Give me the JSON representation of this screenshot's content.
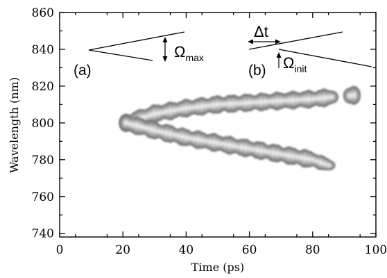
{
  "chart_data": {
    "type": "heatmap",
    "title": "",
    "xlabel": "Time (ps)",
    "ylabel": "Wavelength (nm)",
    "xlim": [
      0,
      100
    ],
    "ylim": [
      738,
      860
    ],
    "x_ticks": [
      0,
      20,
      40,
      60,
      80,
      100
    ],
    "y_ticks": [
      740,
      760,
      780,
      800,
      820,
      840,
      860
    ],
    "x_tick_labels": [
      "0",
      "20",
      "40",
      "60",
      "80",
      "100"
    ],
    "y_tick_labels": [
      "740",
      "760",
      "780",
      "800",
      "820",
      "840",
      "860"
    ],
    "grid": false,
    "colormap": "grayscale contours",
    "branches": [
      {
        "name": "",
        "points": [
          {
            "t": 21,
            "wl": 800
          },
          {
            "t": 30,
            "wl": 805
          },
          {
            "t": 40,
            "wl": 808
          },
          {
            "t": 50,
            "wl": 810
          },
          {
            "t": 60,
            "wl": 811
          },
          {
            "t": 70,
            "wl": 812
          },
          {
            "t": 80,
            "wl": 813
          },
          {
            "t": 86,
            "wl": 814
          },
          {
            "t": 93,
            "wl": 815
          }
        ]
      },
      {
        "name": "",
        "points": [
          {
            "t": 21,
            "wl": 800
          },
          {
            "t": 30,
            "wl": 796
          },
          {
            "t": 40,
            "wl": 792
          },
          {
            "t": 50,
            "wl": 789
          },
          {
            "t": 60,
            "wl": 786
          },
          {
            "t": 70,
            "wl": 783
          },
          {
            "t": 80,
            "wl": 780
          },
          {
            "t": 85,
            "wl": 777
          }
        ]
      }
    ],
    "annotations": {
      "panel_a": {
        "label": "(a)",
        "quantity": "Ω",
        "subscript": "max"
      },
      "panel_b": {
        "label": "(b)",
        "delta": "Δt",
        "quantity": "Ω",
        "subscript": "init"
      }
    }
  }
}
